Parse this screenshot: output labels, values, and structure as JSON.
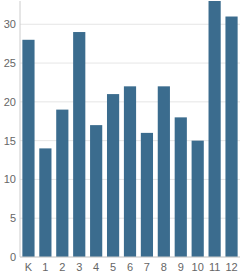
{
  "chart_data": {
    "type": "bar",
    "categories": [
      "K",
      "1",
      "2",
      "3",
      "4",
      "5",
      "6",
      "7",
      "8",
      "9",
      "10",
      "11",
      "12"
    ],
    "values": [
      28,
      14,
      19,
      29,
      17,
      21,
      22,
      16,
      22,
      18,
      15,
      33,
      31
    ],
    "color": "#3b6c8e",
    "ylim": [
      0,
      33
    ],
    "yticks": [
      0,
      5,
      10,
      15,
      20,
      25,
      30
    ],
    "grid": true
  }
}
